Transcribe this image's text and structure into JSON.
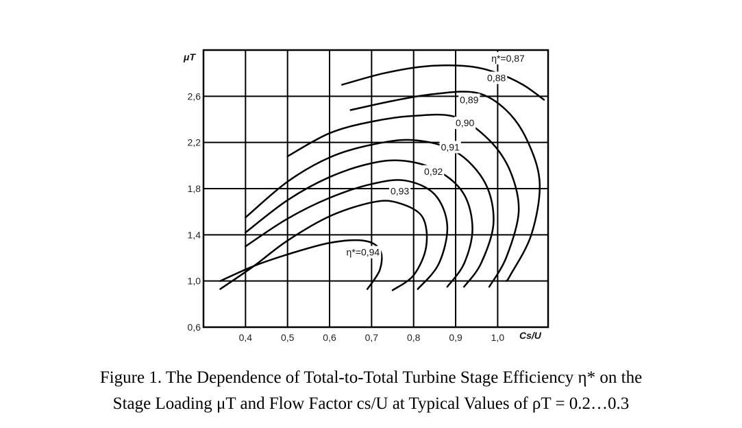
{
  "caption": {
    "line1": "Figure 1. The Dependence of Total-to-Total Turbine Stage Efficiency η* on the",
    "line2": "Stage Loading μT and Flow Factor cs/U at Typical Values of ρT = 0.2…0.3"
  },
  "chart_data": {
    "type": "line",
    "title": "",
    "xlabel": "Cs/U",
    "ylabel": "μT",
    "xlim": [
      0.3,
      1.12
    ],
    "ylim": [
      0.6,
      3.0
    ],
    "grid": true,
    "x_ticks": [
      {
        "value": 0.4,
        "label": "0,4"
      },
      {
        "value": 0.5,
        "label": "0,5"
      },
      {
        "value": 0.6,
        "label": "0,6"
      },
      {
        "value": 0.7,
        "label": "0,7"
      },
      {
        "value": 0.8,
        "label": "0,8"
      },
      {
        "value": 0.9,
        "label": "0,9"
      },
      {
        "value": 1.0,
        "label": "1,0"
      }
    ],
    "y_ticks": [
      {
        "value": 0.6,
        "label": "0,6"
      },
      {
        "value": 1.0,
        "label": "1,0"
      },
      {
        "value": 1.4,
        "label": "1,4"
      },
      {
        "value": 1.8,
        "label": "1,8"
      },
      {
        "value": 2.2,
        "label": "2,2"
      },
      {
        "value": 2.6,
        "label": "2,6"
      }
    ],
    "series": [
      {
        "name": "η*=0,94",
        "label_at": [
          0.64,
          1.22
        ],
        "points": [
          [
            0.34,
            1.0
          ],
          [
            0.42,
            1.13
          ],
          [
            0.5,
            1.23
          ],
          [
            0.6,
            1.33
          ],
          [
            0.68,
            1.35
          ],
          [
            0.72,
            1.27
          ],
          [
            0.72,
            1.1
          ],
          [
            0.69,
            0.93
          ]
        ]
      },
      {
        "name": "0,93",
        "label_at": [
          0.745,
          1.75
        ],
        "points": [
          [
            0.34,
            0.93
          ],
          [
            0.42,
            1.13
          ],
          [
            0.5,
            1.35
          ],
          [
            0.6,
            1.56
          ],
          [
            0.7,
            1.68
          ],
          [
            0.76,
            1.68
          ],
          [
            0.82,
            1.56
          ],
          [
            0.83,
            1.3
          ],
          [
            0.8,
            1.05
          ],
          [
            0.75,
            0.92
          ]
        ]
      },
      {
        "name": "0,92",
        "label_at": [
          0.825,
          1.92
        ],
        "points": [
          [
            0.4,
            1.3
          ],
          [
            0.5,
            1.54
          ],
          [
            0.6,
            1.72
          ],
          [
            0.7,
            1.84
          ],
          [
            0.78,
            1.87
          ],
          [
            0.85,
            1.75
          ],
          [
            0.88,
            1.48
          ],
          [
            0.86,
            1.15
          ],
          [
            0.81,
            0.93
          ]
        ]
      },
      {
        "name": "0,91",
        "label_at": [
          0.865,
          2.13
        ],
        "points": [
          [
            0.4,
            1.42
          ],
          [
            0.5,
            1.7
          ],
          [
            0.6,
            1.9
          ],
          [
            0.7,
            2.02
          ],
          [
            0.78,
            2.04
          ],
          [
            0.86,
            1.95
          ],
          [
            0.92,
            1.75
          ],
          [
            0.94,
            1.45
          ],
          [
            0.92,
            1.15
          ],
          [
            0.88,
            0.95
          ]
        ]
      },
      {
        "name": "0,90",
        "label_at": [
          0.9,
          2.34
        ],
        "points": [
          [
            0.4,
            1.55
          ],
          [
            0.5,
            1.86
          ],
          [
            0.6,
            2.07
          ],
          [
            0.7,
            2.18
          ],
          [
            0.8,
            2.22
          ],
          [
            0.9,
            2.12
          ],
          [
            0.97,
            1.85
          ],
          [
            0.99,
            1.5
          ],
          [
            0.96,
            1.15
          ],
          [
            0.92,
            0.95
          ]
        ]
      },
      {
        "name": "0,89",
        "label_at": [
          0.91,
          2.54
        ],
        "points": [
          [
            0.5,
            2.08
          ],
          [
            0.6,
            2.28
          ],
          [
            0.7,
            2.38
          ],
          [
            0.8,
            2.43
          ],
          [
            0.9,
            2.42
          ],
          [
            0.98,
            2.22
          ],
          [
            1.03,
            1.95
          ],
          [
            1.05,
            1.6
          ],
          [
            1.02,
            1.2
          ],
          [
            0.98,
            0.95
          ]
        ]
      },
      {
        "name": "0,88",
        "label_at": [
          0.975,
          2.73
        ],
        "points": [
          [
            0.65,
            2.48
          ],
          [
            0.75,
            2.56
          ],
          [
            0.85,
            2.62
          ],
          [
            0.95,
            2.63
          ],
          [
            1.02,
            2.48
          ],
          [
            1.07,
            2.22
          ],
          [
            1.1,
            1.85
          ],
          [
            1.08,
            1.4
          ],
          [
            1.03,
            1.05
          ],
          [
            1.02,
            1.0
          ]
        ]
      },
      {
        "name": "η*=0,87",
        "label_at": [
          0.985,
          2.9
        ],
        "points": [
          [
            0.63,
            2.7
          ],
          [
            0.73,
            2.8
          ],
          [
            0.83,
            2.86
          ],
          [
            0.93,
            2.86
          ],
          [
            1.0,
            2.8
          ],
          [
            1.06,
            2.7
          ],
          [
            1.11,
            2.57
          ]
        ]
      }
    ]
  }
}
